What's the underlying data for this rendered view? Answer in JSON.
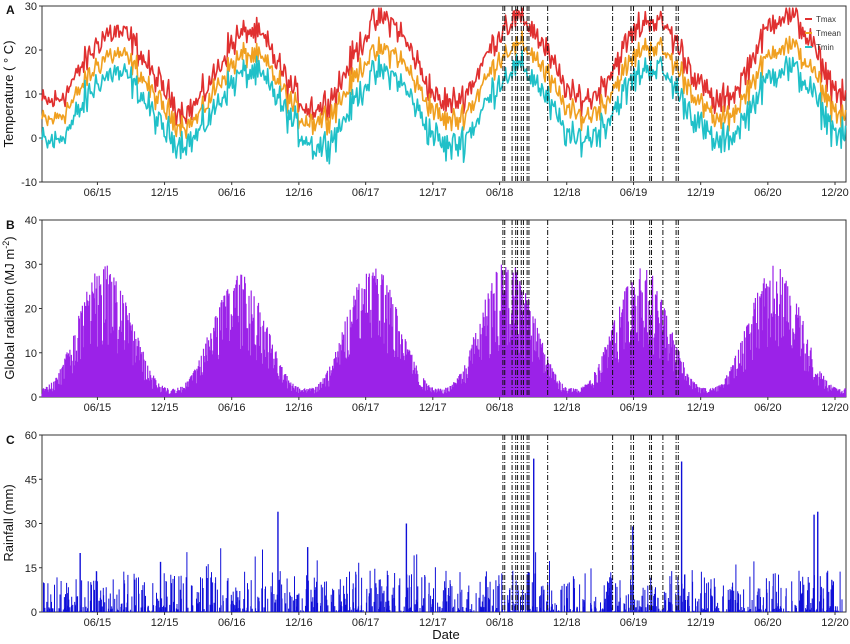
{
  "chart_data": [
    {
      "panel": "A",
      "type": "line",
      "ylabel": "Temperature ( ° C)",
      "ylim": [
        -10,
        30
      ],
      "yticks": [
        "-10",
        "0",
        "10",
        "20",
        "30"
      ],
      "x_start": "2015-01-01",
      "x_end": "2020-12-31",
      "legend": {
        "position": "top-right",
        "entries": [
          "Tmax",
          "Tmean",
          "Tmin"
        ]
      },
      "series": [
        {
          "name": "Tmax",
          "color": "#e03030",
          "peak_month_values": [
            24,
            24,
            27,
            27,
            27,
            28
          ],
          "trough_values": [
            8,
            6,
            7,
            8,
            9,
            8
          ]
        },
        {
          "name": "Tmean",
          "color": "#f0a020",
          "peak_month_values": [
            19,
            19,
            20,
            21,
            21,
            21
          ],
          "trough_values": [
            4,
            3,
            4,
            4,
            5,
            4
          ]
        },
        {
          "name": "Tmin",
          "color": "#20c0c8",
          "peak_month_values": [
            15,
            15,
            15,
            16,
            16,
            16
          ],
          "trough_values": [
            -1,
            -1,
            -2,
            -2,
            0,
            -1
          ]
        }
      ]
    },
    {
      "panel": "B",
      "type": "bar",
      "ylabel": "Global radiation (MJ m",
      "ylabel_sup": "-2",
      "ylabel_end": ")",
      "ylim": [
        0,
        40
      ],
      "yticks": [
        "0",
        "10",
        "20",
        "30",
        "40"
      ],
      "color": "#9b22e8",
      "annual_peak_values": [
        30,
        28,
        30,
        31,
        30,
        30
      ],
      "annual_min_values": [
        2,
        2,
        2,
        2,
        2,
        2
      ]
    },
    {
      "panel": "C",
      "type": "bar",
      "ylabel": "Rainfall (mm)",
      "xlabel": "Date",
      "ylim": [
        0,
        60
      ],
      "yticks": [
        "0",
        "15",
        "30",
        "45",
        "60"
      ],
      "color": "#1010d8",
      "notable_events": [
        {
          "date": "2015-04-15",
          "value": 20
        },
        {
          "date": "2015-11-20",
          "value": 17
        },
        {
          "date": "2016-10-05",
          "value": 34
        },
        {
          "date": "2016-12-25",
          "value": 22
        },
        {
          "date": "2017-09-20",
          "value": 30
        },
        {
          "date": "2018-09-02",
          "value": 52
        },
        {
          "date": "2019-05-30",
          "value": 29
        },
        {
          "date": "2019-10-10",
          "value": 51
        },
        {
          "date": "2020-10-05",
          "value": 33
        },
        {
          "date": "2020-10-15",
          "value": 34
        }
      ]
    }
  ],
  "x_tick_labels": [
    "06/15",
    "12/15",
    "06/16",
    "12/16",
    "06/17",
    "12/17",
    "06/18",
    "12/18",
    "06/19",
    "12/19",
    "06/20",
    "12/20"
  ],
  "x_tick_dates": [
    "2015-06-01",
    "2015-12-01",
    "2016-06-01",
    "2016-12-01",
    "2017-06-01",
    "2017-12-01",
    "2018-06-01",
    "2018-12-01",
    "2019-06-01",
    "2019-12-01",
    "2020-06-01",
    "2020-12-01"
  ],
  "vertical_markers": {
    "dates_2018": [
      "2018-06-10",
      "2018-06-15",
      "2018-07-05",
      "2018-07-15",
      "2018-07-20",
      "2018-07-30",
      "2018-08-05",
      "2018-08-15",
      "2018-08-20",
      "2018-10-10"
    ],
    "dates_2019": [
      "2019-04-05",
      "2019-05-25",
      "2019-06-01",
      "2019-07-15",
      "2019-07-20",
      "2019-08-20",
      "2019-09-25",
      "2019-10-01"
    ]
  }
}
